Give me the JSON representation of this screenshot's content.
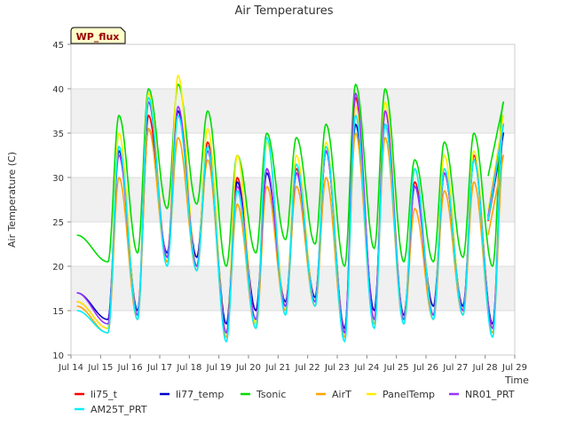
{
  "chart_data": {
    "type": "line",
    "title": "Air Temperatures",
    "xlabel": "Time",
    "ylabel": "Air Temperature (C)",
    "badge": "WP_flux",
    "xlim": [
      14,
      29
    ],
    "ylim": [
      10,
      45
    ],
    "x_ticks": [
      {
        "value": 14,
        "label": "Jul 14"
      },
      {
        "value": 15,
        "label": "Jul 15"
      },
      {
        "value": 16,
        "label": "Jul 16"
      },
      {
        "value": 17,
        "label": "Jul 17"
      },
      {
        "value": 18,
        "label": "Jul 18"
      },
      {
        "value": 19,
        "label": "Jul 19"
      },
      {
        "value": 20,
        "label": "Jul 20"
      },
      {
        "value": 21,
        "label": "Jul 21"
      },
      {
        "value": 22,
        "label": "Jul 22"
      },
      {
        "value": 23,
        "label": "Jul 23"
      },
      {
        "value": 24,
        "label": "Jul 24"
      },
      {
        "value": 25,
        "label": "Jul 25"
      },
      {
        "value": 26,
        "label": "Jul 26"
      },
      {
        "value": 27,
        "label": "Jul 27"
      },
      {
        "value": 28,
        "label": "Jul 28"
      },
      {
        "value": 29,
        "label": "Jul 29"
      }
    ],
    "y_ticks": [
      10,
      15,
      20,
      25,
      30,
      35,
      40,
      45
    ],
    "grid": true,
    "legend_position": "bottom",
    "daily_extremes": {
      "day_start": [
        14.2,
        15,
        16,
        17,
        18,
        19,
        20,
        21,
        22,
        23,
        24,
        25,
        26,
        27,
        28
      ],
      "min": [
        16,
        12.5,
        14,
        20.5,
        19.5,
        12,
        13,
        15,
        15.5,
        12,
        13.5,
        13.5,
        14,
        14.5,
        12.5
      ],
      "max": [
        null,
        32,
        35.5,
        37,
        33.5,
        29,
        30,
        30.5,
        33,
        36,
        35.5,
        29,
        30.5,
        31.5,
        35
      ]
    },
    "series": [
      {
        "name": "li75_t",
        "color": "#ff0000",
        "min": [
          16,
          13,
          14.5,
          21,
          20,
          12.5,
          13.5,
          15.5,
          16,
          12.5,
          14,
          14,
          14.5,
          15,
          13
        ],
        "max": [
          null,
          33,
          37,
          37.5,
          34,
          30,
          31,
          31,
          33,
          39,
          37.5,
          29.5,
          30.5,
          32.5,
          35
        ]
      },
      {
        "name": "li77_temp",
        "color": "#0000cc",
        "min": [
          17,
          14,
          15,
          21.5,
          21,
          13.5,
          15,
          16,
          16.5,
          13,
          15,
          14.5,
          15.5,
          15.5,
          13.5
        ],
        "max": [
          null,
          33,
          35.5,
          37.5,
          33.5,
          29.5,
          30.5,
          30.5,
          33,
          36,
          36,
          29,
          30.5,
          32,
          35
        ]
      },
      {
        "name": "Tsonic",
        "color": "#00dd00",
        "min": [
          23.5,
          20.5,
          21.5,
          26.5,
          27,
          20,
          21.5,
          23,
          22.5,
          20,
          22,
          20.5,
          20.5,
          21,
          20
        ],
        "max": [
          null,
          37,
          40,
          40.5,
          37.5,
          32.5,
          35,
          34.5,
          36,
          40.5,
          40,
          32,
          34,
          35,
          38.5
        ]
      },
      {
        "name": "AirT",
        "color": "#ffa500",
        "min": [
          15.5,
          12.5,
          14,
          20.5,
          19.5,
          12,
          13,
          15,
          15.5,
          12,
          13.5,
          13.5,
          14,
          14.5,
          12.5
        ],
        "max": [
          null,
          30,
          35.5,
          34.5,
          32,
          27,
          29,
          29,
          30,
          35,
          34.5,
          26.5,
          28.5,
          29.5,
          32.5
        ]
      },
      {
        "name": "PanelTemp",
        "color": "#ffee00",
        "min": [
          16,
          13,
          14.5,
          21,
          20,
          12.5,
          13.5,
          15.5,
          16,
          12.5,
          14,
          14,
          14.5,
          15,
          13
        ],
        "max": [
          null,
          35,
          39.5,
          41.5,
          35.5,
          32.5,
          34,
          32.5,
          34,
          38,
          38.5,
          31,
          32.5,
          33,
          37
        ]
      },
      {
        "name": "NR01_PRT",
        "color": "#9933ff",
        "min": [
          17,
          13.5,
          14.5,
          21,
          20,
          12.5,
          14,
          15.5,
          16,
          12.5,
          14,
          14,
          14.5,
          15,
          13
        ],
        "max": [
          null,
          32.5,
          38.5,
          38,
          33,
          29,
          31,
          30.5,
          33,
          39.5,
          37.5,
          29,
          30.5,
          32,
          36
        ]
      },
      {
        "name": "AM25T_PRT",
        "color": "#00eeff",
        "min": [
          15,
          12.5,
          14,
          20,
          19.5,
          11.5,
          13,
          14.5,
          15.5,
          11.5,
          13,
          13.5,
          14,
          14.5,
          12
        ],
        "max": [
          null,
          33.5,
          39,
          37,
          33.5,
          28.5,
          34.5,
          31.5,
          33.5,
          37,
          36,
          31,
          31,
          32,
          36
        ]
      }
    ]
  }
}
